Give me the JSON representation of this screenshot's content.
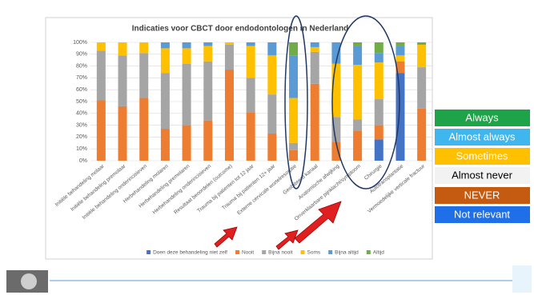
{
  "chart_data": {
    "type": "stacked_bar",
    "title": "Indicaties voor CBCT door endodontologen in Nederland",
    "categories": [
      "Initiële behandeling molaar",
      "Initiële behandeling premolaar",
      "Initiële behandeling onderincisieven",
      "Herbehandeling molaren",
      "Herbehandeling premolaren",
      "Herbehandeling onderincisieven",
      "Resultaat beoordelen (outcome)",
      "Trauma bij patienten tot 12 jaar",
      "Trauma bij patienten 12+ jaar",
      "Externe cervicale wortelresorptie",
      "Geobliteerd kanaal",
      "Anatomische afwijking",
      "Onverklaarbare pijnklacht/symptoom",
      "Chirurgie",
      "Autotransplantatie",
      "Vermoedelijke verticale fractuur"
    ],
    "series": [
      {
        "name": "Doen deze behandeling niet zelf",
        "color": "#4472c4",
        "values": [
          0,
          0,
          0,
          0,
          0,
          0,
          0,
          0,
          0,
          0,
          0,
          0,
          0,
          18,
          74,
          0
        ]
      },
      {
        "name": "Nooit",
        "color": "#ed7d31",
        "values": [
          51,
          46,
          53,
          27,
          30,
          34,
          77,
          41,
          23,
          9,
          65,
          16,
          25,
          12,
          10,
          44
        ]
      },
      {
        "name": "Bijna nooit",
        "color": "#a5a5a5",
        "values": [
          42,
          43,
          38,
          47,
          52,
          50,
          21,
          29,
          33,
          6,
          27,
          21,
          10,
          22,
          0,
          35
        ]
      },
      {
        "name": "Soms",
        "color": "#ffc000",
        "values": [
          7,
          11,
          9,
          21,
          13,
          13,
          2,
          27,
          33,
          38,
          4,
          45,
          46,
          31,
          5,
          19
        ]
      },
      {
        "name": "Bijna altijd",
        "color": "#5b9bd5",
        "values": [
          0,
          0,
          0,
          5,
          5,
          3,
          0,
          3,
          11,
          36,
          4,
          18,
          16,
          8,
          8,
          0
        ]
      },
      {
        "name": "Altijd",
        "color": "#70ad47",
        "values": [
          0,
          0,
          0,
          0,
          0,
          0,
          0,
          0,
          0,
          11,
          0,
          0,
          3,
          9,
          3,
          2
        ]
      }
    ],
    "ylim": [
      0,
      100
    ],
    "yticks": [
      {
        "value": 0,
        "label": "0%"
      },
      {
        "value": 10,
        "label": "10%"
      },
      {
        "value": 20,
        "label": "20%"
      },
      {
        "value": 30,
        "label": "30%"
      },
      {
        "value": 40,
        "label": "40%"
      },
      {
        "value": 50,
        "label": "50%"
      },
      {
        "value": 60,
        "label": "60%"
      },
      {
        "value": 70,
        "label": "70%"
      },
      {
        "value": 80,
        "label": "80%"
      },
      {
        "value": 90,
        "label": "90%"
      },
      {
        "value": 100,
        "label": "100%"
      }
    ],
    "grid": true
  },
  "side_legend": [
    "Always",
    "Almost always",
    "Sometimes",
    "Almost never",
    "NEVER",
    "Not relevant"
  ]
}
